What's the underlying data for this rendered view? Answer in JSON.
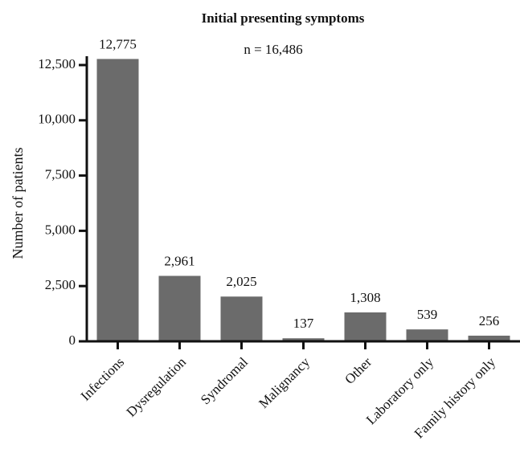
{
  "chart_data": {
    "type": "bar",
    "title": "Initial presenting symptoms",
    "annotation": "n = 16,486",
    "y_label": "Number of patients",
    "categories": [
      "Infections",
      "Dysregulation",
      "Syndromal",
      "Malignancy",
      "Other",
      "Laboratory only",
      "Family history only"
    ],
    "values": [
      12775,
      2961,
      2025,
      137,
      1308,
      539,
      256
    ],
    "value_labels": [
      "12,775",
      "2,961",
      "2,025",
      "137",
      "1,308",
      "539",
      "256"
    ],
    "color": "#6b6b6b",
    "ylim": [
      0,
      12500
    ],
    "yticks": [
      0,
      {
        "value": 2500,
        "label": "2,500"
      },
      {
        "value": 5000,
        "label": "5,000"
      },
      {
        "value": 7500,
        "label": "7,500"
      },
      {
        "value": 10000,
        "label": "10,000"
      },
      {
        "value": 12500,
        "label": "12,500"
      }
    ]
  }
}
